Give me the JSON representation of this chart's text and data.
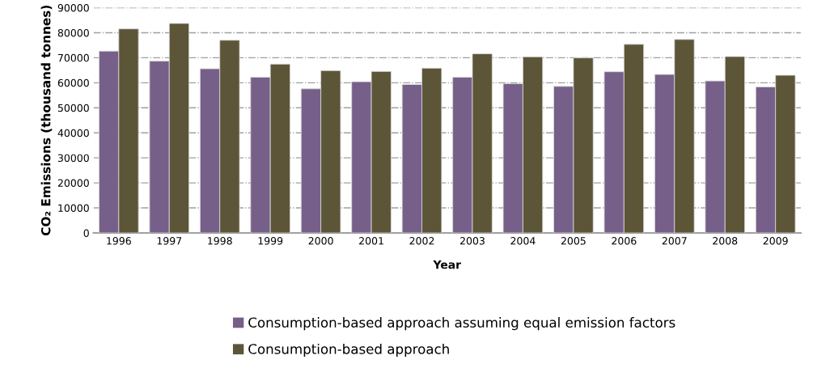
{
  "chart_data": {
    "type": "bar",
    "xlabel": "Year",
    "ylabel": "CO₂ Emissions (thousand tonnes)",
    "categories": [
      "1996",
      "1997",
      "1998",
      "1999",
      "2000",
      "2001",
      "2002",
      "2003",
      "2004",
      "2005",
      "2006",
      "2007",
      "2008",
      "2009"
    ],
    "series": [
      {
        "name": "Consumption-based approach assuming equal emission factors",
        "color": "#76608a",
        "values": [
          72650,
          68640,
          65600,
          62240,
          57580,
          60400,
          59310,
          62240,
          59640,
          58550,
          64410,
          63330,
          60720,
          58340
        ]
      },
      {
        "name": "Consumption-based approach",
        "color": "#5c5538",
        "values": [
          81540,
          83710,
          76990,
          67450,
          64840,
          64520,
          65820,
          71570,
          70370,
          69940,
          75360,
          77310,
          70480,
          63000
        ]
      }
    ],
    "ylim": [
      0,
      90000
    ],
    "yticks": [
      0,
      10000,
      20000,
      30000,
      40000,
      50000,
      60000,
      70000,
      80000,
      90000
    ],
    "grid": "y",
    "legend": "bottom"
  }
}
